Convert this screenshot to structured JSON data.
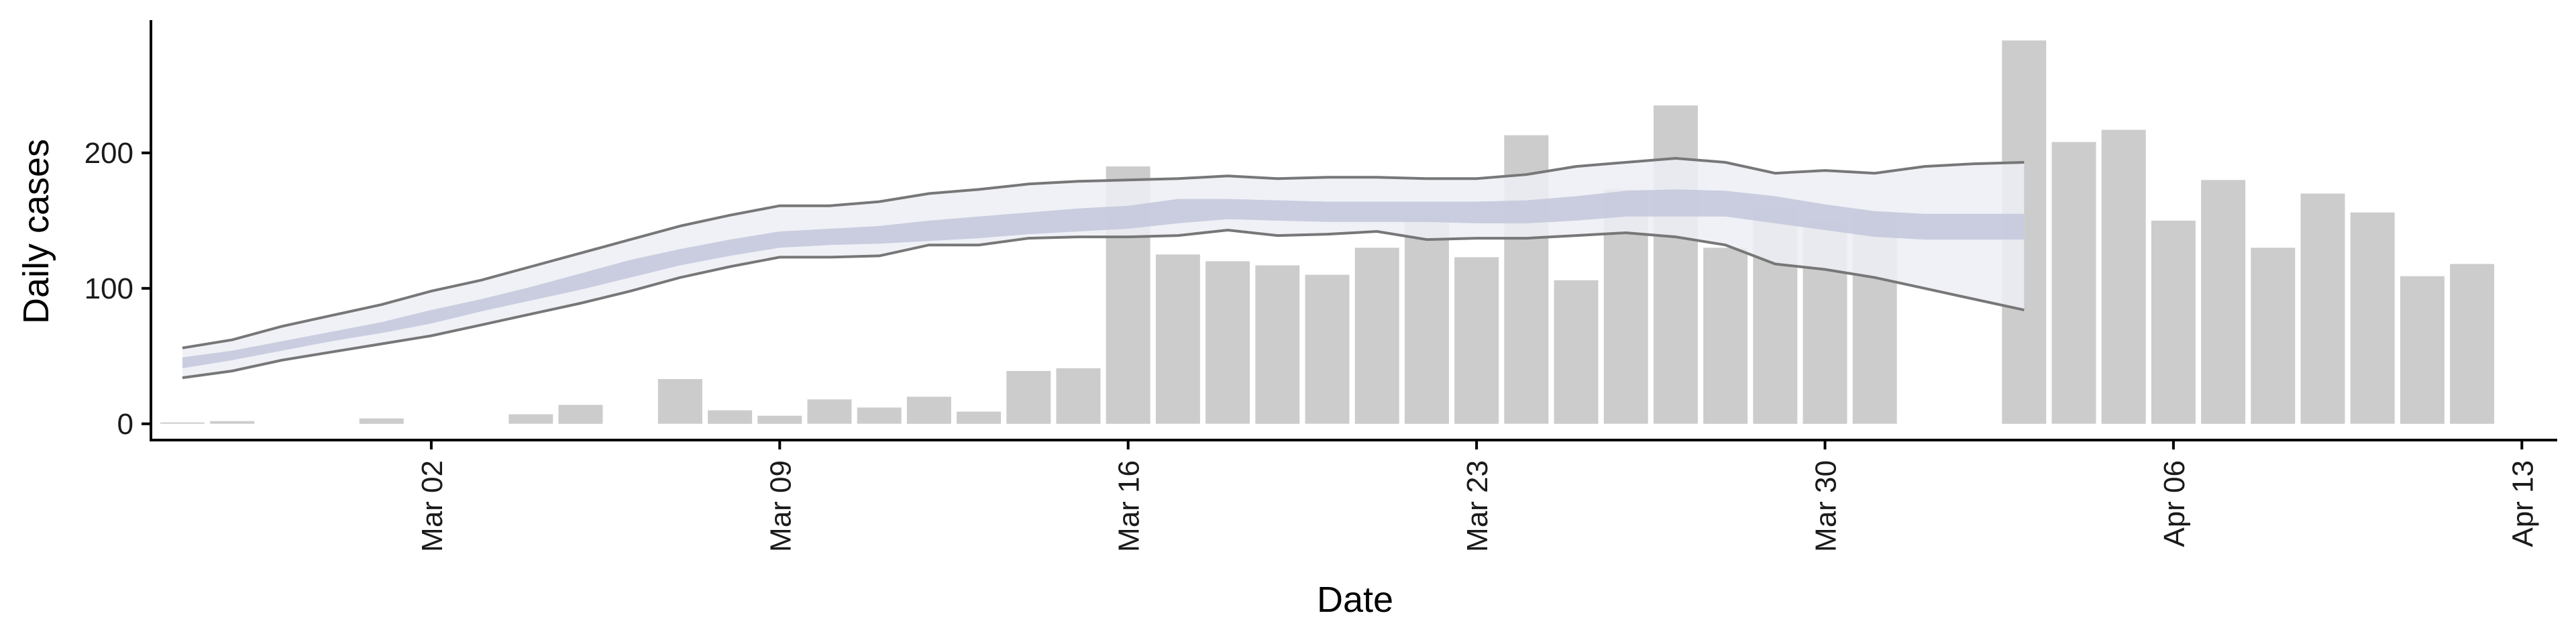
{
  "chart_data": {
    "type": "bar",
    "xlabel": "Date",
    "ylabel": "Daily cases",
    "x_ticks": [
      "Mar 02",
      "Mar 09",
      "Mar 16",
      "Mar 23",
      "Mar 30",
      "Apr 06",
      "Apr 13"
    ],
    "y_ticks": [
      "0",
      "100",
      "200"
    ],
    "x_domain": [
      "2020-02-24",
      "2020-04-13"
    ],
    "ylim": [
      -12,
      298
    ],
    "grid": false,
    "legend": "none",
    "colors": {
      "bars": "#cccccc",
      "band_outer": "#eceef5",
      "band_inner": "#c2c7da",
      "bound_lines": "#777777"
    },
    "series": [
      {
        "type": "bar",
        "dates": [
          "2020-02-26",
          "2020-02-27",
          "2020-02-29",
          "2020-03-01",
          "2020-03-02",
          "2020-03-04",
          "2020-03-05",
          "2020-03-06",
          "2020-03-07",
          "2020-03-08",
          "2020-03-09",
          "2020-03-10",
          "2020-03-11",
          "2020-03-12",
          "2020-03-13",
          "2020-03-14",
          "2020-03-15",
          "2020-03-16",
          "2020-03-17",
          "2020-03-18",
          "2020-03-19",
          "2020-03-20",
          "2020-03-21",
          "2020-03-22",
          "2020-03-23",
          "2020-03-24",
          "2020-03-25",
          "2020-03-26",
          "2020-03-27",
          "2020-03-28",
          "2020-03-29",
          "2020-03-30",
          "2020-03-31",
          "2020-04-01",
          "2020-04-03",
          "2020-04-04",
          "2020-04-05",
          "2020-04-06",
          "2020-04-07",
          "2020-04-08",
          "2020-04-09",
          "2020-04-10",
          "2020-04-11",
          "2020-04-12"
        ],
        "values": [
          1,
          2,
          0,
          4,
          0,
          7,
          14,
          0,
          33,
          10,
          6,
          18,
          12,
          20,
          9,
          39,
          41,
          190,
          125,
          120,
          117,
          110,
          130,
          153,
          123,
          213,
          106,
          173,
          235,
          130,
          160,
          150,
          156,
          0,
          283,
          208,
          217,
          150,
          180,
          130,
          170,
          156,
          109,
          118
        ]
      },
      {
        "type": "band",
        "dates": [
          "2020-02-26",
          "2020-02-27",
          "2020-02-28",
          "2020-02-29",
          "2020-03-01",
          "2020-03-02",
          "2020-03-03",
          "2020-03-04",
          "2020-03-05",
          "2020-03-06",
          "2020-03-07",
          "2020-03-08",
          "2020-03-09",
          "2020-03-10",
          "2020-03-11",
          "2020-03-12",
          "2020-03-13",
          "2020-03-14",
          "2020-03-15",
          "2020-03-16",
          "2020-03-17",
          "2020-03-18",
          "2020-03-19",
          "2020-03-20",
          "2020-03-21",
          "2020-03-22",
          "2020-03-23",
          "2020-03-24",
          "2020-03-25",
          "2020-03-26",
          "2020-03-27",
          "2020-03-28",
          "2020-03-29",
          "2020-03-30",
          "2020-03-31",
          "2020-04-01",
          "2020-04-02",
          "2020-04-03"
        ],
        "lower_90": [
          34,
          39,
          47,
          53,
          59,
          65,
          73,
          81,
          89,
          98,
          108,
          116,
          123,
          123,
          124,
          132,
          132,
          137,
          138,
          138,
          139,
          143,
          139,
          140,
          142,
          136,
          137,
          137,
          139,
          141,
          138,
          132,
          118,
          114,
          108,
          100,
          92,
          84
        ],
        "upper_90": [
          56,
          62,
          72,
          80,
          88,
          98,
          106,
          116,
          126,
          136,
          146,
          154,
          161,
          161,
          164,
          170,
          173,
          177,
          179,
          180,
          181,
          183,
          181,
          182,
          182,
          181,
          181,
          184,
          190,
          193,
          196,
          193,
          185,
          187,
          185,
          190,
          192,
          193
        ],
        "lower_50": [
          41,
          47,
          54,
          61,
          67,
          74,
          83,
          91,
          99,
          108,
          117,
          124,
          130,
          132,
          133,
          135,
          137,
          140,
          142,
          144,
          148,
          151,
          150,
          149,
          149,
          149,
          148,
          148,
          150,
          153,
          153,
          153,
          148,
          143,
          138,
          136,
          136,
          136
        ],
        "upper_50": [
          49,
          54,
          61,
          68,
          75,
          84,
          92,
          101,
          111,
          121,
          129,
          136,
          142,
          144,
          146,
          150,
          153,
          156,
          159,
          161,
          166,
          166,
          165,
          164,
          164,
          164,
          164,
          165,
          168,
          172,
          173,
          172,
          168,
          162,
          157,
          155,
          155,
          155
        ]
      }
    ]
  }
}
